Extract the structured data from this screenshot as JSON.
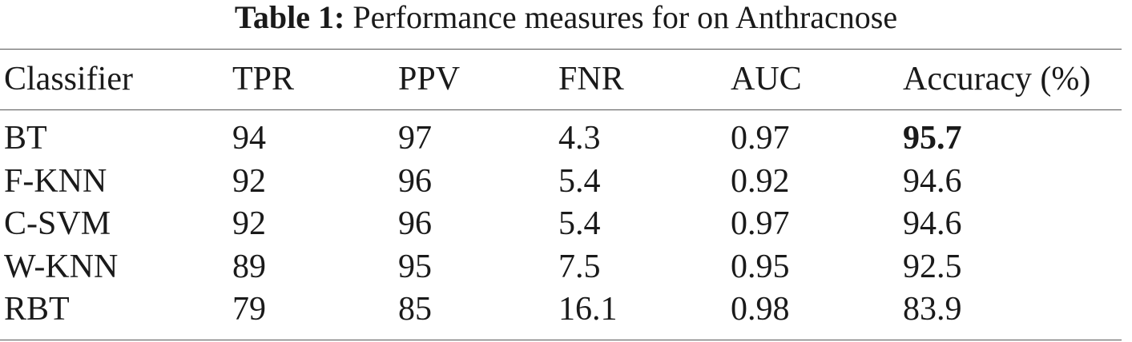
{
  "table": {
    "caption_label": "Table 1:",
    "caption": "Performance measures for on Anthracnose",
    "header": [
      "Classifier",
      "TPR",
      "PPV",
      "FNR",
      "AUC",
      "Accuracy (%)"
    ],
    "rows": [
      [
        "BT",
        "94",
        "97",
        "4.3",
        "0.97",
        "95.7"
      ],
      [
        "F-KNN",
        "92",
        "96",
        "5.4",
        "0.92",
        "94.6"
      ],
      [
        "C-SVM",
        "92",
        "96",
        "5.4",
        "0.97",
        "94.6"
      ],
      [
        "W-KNN",
        "89",
        "95",
        "7.5",
        "0.95",
        "92.5"
      ],
      [
        "RBT",
        "79",
        "85",
        "16.1",
        "0.98",
        "83.9"
      ]
    ]
  }
}
